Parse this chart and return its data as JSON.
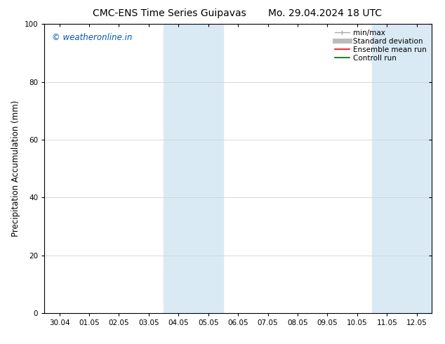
{
  "title_left": "CMC-ENS Time Series Guipavas",
  "title_right": "Mo. 29.04.2024 18 UTC",
  "ylabel": "Precipitation Accumulation (mm)",
  "watermark": "© weatheronline.in",
  "watermark_color": "#0055bb",
  "ylim": [
    0,
    100
  ],
  "yticks": [
    0,
    20,
    40,
    60,
    80,
    100
  ],
  "xtick_labels": [
    "30.04",
    "01.05",
    "02.05",
    "03.05",
    "04.05",
    "05.05",
    "06.05",
    "07.05",
    "08.05",
    "09.05",
    "10.05",
    "11.05",
    "12.05"
  ],
  "background_color": "#ffffff",
  "plot_bg_color": "#ffffff",
  "shaded_color": "#daeaf5",
  "shaded_regions": [
    {
      "xstart": 4,
      "xend": 6
    },
    {
      "xstart": 11,
      "xend": 13
    }
  ],
  "grid_color": "#cccccc",
  "grid_lw": 0.5,
  "title_fontsize": 10,
  "tick_label_fontsize": 7.5,
  "ylabel_fontsize": 8.5,
  "watermark_fontsize": 8.5,
  "legend_fontsize": 7.5,
  "figwidth": 6.34,
  "figheight": 4.9,
  "dpi": 100
}
